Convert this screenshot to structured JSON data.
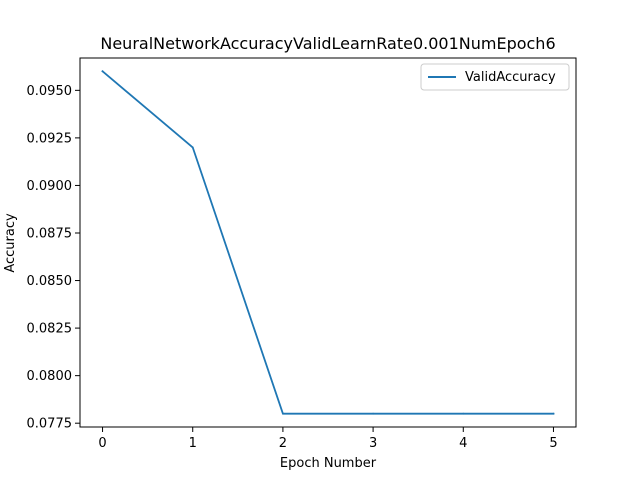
{
  "chart_data": {
    "type": "line",
    "title": "NeuralNetworkAccuracyValidLearnRate0.001NumEpoch6",
    "xlabel": "Epoch Number",
    "ylabel": "Accuracy",
    "x": [
      0,
      1,
      2,
      3,
      4,
      5
    ],
    "series": [
      {
        "name": "ValidAccuracy",
        "values": [
          0.096,
          0.092,
          0.078,
          0.078,
          0.078,
          0.078
        ],
        "color": "#1f77b4"
      }
    ],
    "xlim": [
      -0.25,
      5.25
    ],
    "ylim": [
      0.0773,
      0.0967
    ],
    "x_ticks": [
      0,
      1,
      2,
      3,
      4,
      5
    ],
    "x_tick_labels": [
      "0",
      "1",
      "2",
      "3",
      "4",
      "5"
    ],
    "y_ticks": [
      0.0775,
      0.08,
      0.0825,
      0.085,
      0.0875,
      0.09,
      0.0925,
      0.095
    ],
    "y_tick_labels": [
      "0.0775",
      "0.0800",
      "0.0825",
      "0.0850",
      "0.0875",
      "0.0900",
      "0.0925",
      "0.0950"
    ],
    "grid": false,
    "legend_position": "top-right"
  }
}
